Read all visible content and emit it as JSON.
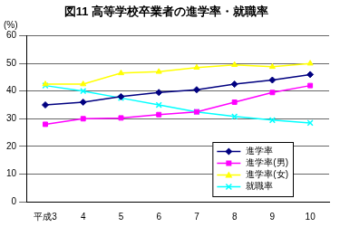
{
  "chart_data": {
    "type": "line",
    "title": "図11 高等学校卒業者の進学率・就職率",
    "ylabel": "(%)",
    "categories": [
      "平成3",
      "4",
      "5",
      "6",
      "7",
      "8",
      "9",
      "10"
    ],
    "series": [
      {
        "name": "進学率",
        "color": "#000080",
        "marker": "diamond",
        "values": [
          35,
          36,
          38,
          39.5,
          40.5,
          42.5,
          44,
          46
        ]
      },
      {
        "name": "進学率(男)",
        "color": "#ff00ff",
        "marker": "square",
        "values": [
          28,
          30,
          30.3,
          31.5,
          32.5,
          36,
          39.5,
          42
        ]
      },
      {
        "name": "進学率(女)",
        "color": "#ffff00",
        "marker": "triangle",
        "values": [
          42.5,
          42.5,
          46.5,
          47,
          48.5,
          49.5,
          48.8,
          50
        ]
      },
      {
        "name": "就職率",
        "color": "#00ffff",
        "marker": "x",
        "values": [
          42,
          40,
          37.5,
          35,
          32.5,
          30.8,
          29.5,
          28.5
        ]
      }
    ],
    "ylim": [
      0,
      60
    ],
    "yticks": [
      0,
      10,
      20,
      30,
      40,
      50,
      60
    ],
    "grid": true,
    "legend": "lower right"
  }
}
